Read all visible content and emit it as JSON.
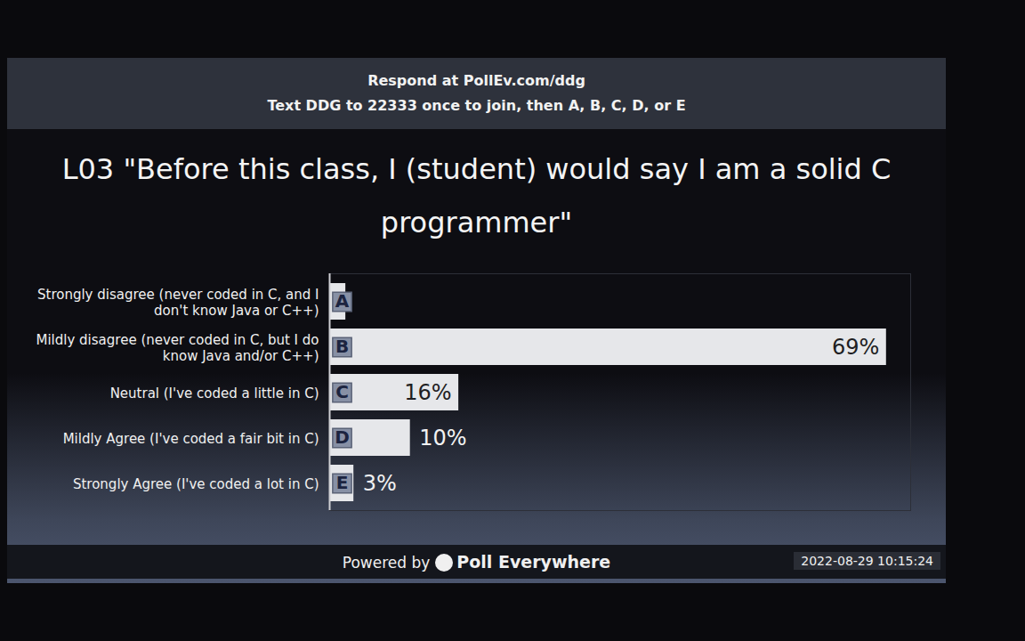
{
  "header": {
    "respond": "Respond at PollEv.com/ddg",
    "text": "Text DDG to 22333 once to join, then A, B, C, D, or E"
  },
  "chart_data": {
    "type": "bar",
    "title": "L03 \"Before this class, I (student) would say I am a solid C programmer\"",
    "categories": [
      "Strongly disagree (never coded in C, and I don't know Java or C++)",
      "Mildly disagree (never coded in C, but I do know Java and/or C++)",
      "Neutral (I've coded a little in C)",
      "Mildly Agree (I've coded a fair bit in C)",
      "Strongly Agree (I've coded a lot in C)"
    ],
    "values": [
      2,
      69,
      16,
      10,
      3
    ],
    "value_labels": [
      null,
      "69%",
      "16%",
      "10%",
      "3%"
    ],
    "bar_letters": [
      "A",
      "B",
      "C",
      "D",
      "E"
    ],
    "orientation": "horizontal",
    "data_labels": true,
    "tick_labels": "y",
    "grid": false,
    "color": "#e6e7ea",
    "xlim": [
      0,
      72
    ],
    "xticks": []
  },
  "footer": {
    "powered_by": "Powered by",
    "brand": "Poll Everywhere",
    "timestamp": "2022-08-29 10:15:24"
  }
}
